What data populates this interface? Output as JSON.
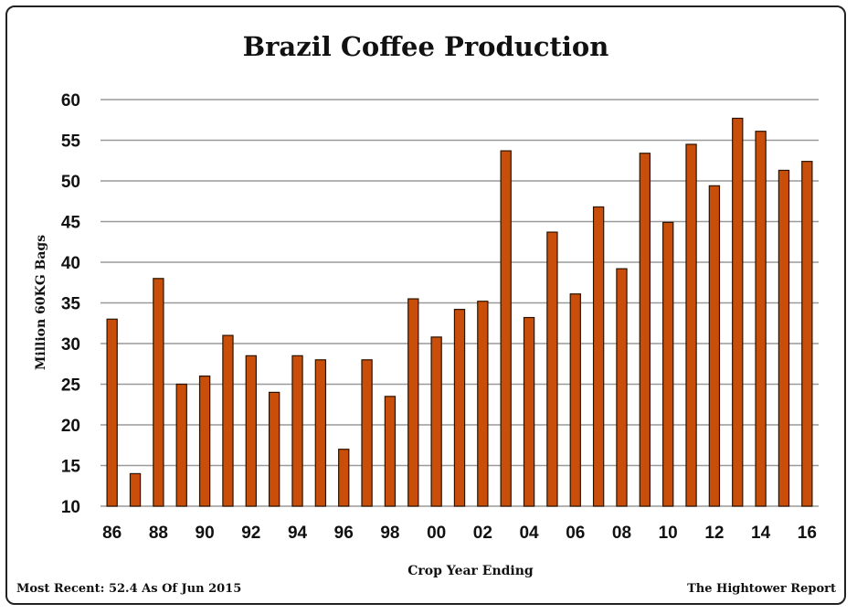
{
  "chart_data": {
    "type": "bar",
    "title": "Brazil Coffee Production",
    "xlabel": "Crop Year Ending",
    "ylabel": "Million 60KG Bags",
    "ylim": [
      10,
      60
    ],
    "yticks": [
      10,
      15,
      20,
      25,
      30,
      35,
      40,
      45,
      50,
      55,
      60
    ],
    "xtick_labels": [
      "86",
      "88",
      "90",
      "92",
      "94",
      "96",
      "98",
      "00",
      "02",
      "04",
      "06",
      "08",
      "10",
      "12",
      "14",
      "16"
    ],
    "categories": [
      "86",
      "87",
      "88",
      "89",
      "90",
      "91",
      "92",
      "93",
      "94",
      "95",
      "96",
      "97",
      "98",
      "99",
      "00",
      "01",
      "02",
      "03",
      "04",
      "05",
      "06",
      "07",
      "08",
      "09",
      "10",
      "11",
      "12",
      "13",
      "14",
      "15",
      "16"
    ],
    "values": [
      33,
      14,
      38,
      25,
      26,
      31,
      28.5,
      24,
      28.5,
      28,
      17,
      28,
      23.5,
      35.5,
      30.8,
      34.2,
      35.2,
      53.7,
      33.2,
      43.7,
      36.1,
      46.8,
      39.2,
      53.4,
      44.9,
      54.5,
      49.4,
      57.7,
      56.1,
      51.3,
      52.4
    ],
    "bar_color": "#c84e0a",
    "grid": true,
    "legend": "none"
  },
  "footer": {
    "left": "Most Recent: 52.4 As Of Jun 2015",
    "right": "The Hightower Report"
  }
}
